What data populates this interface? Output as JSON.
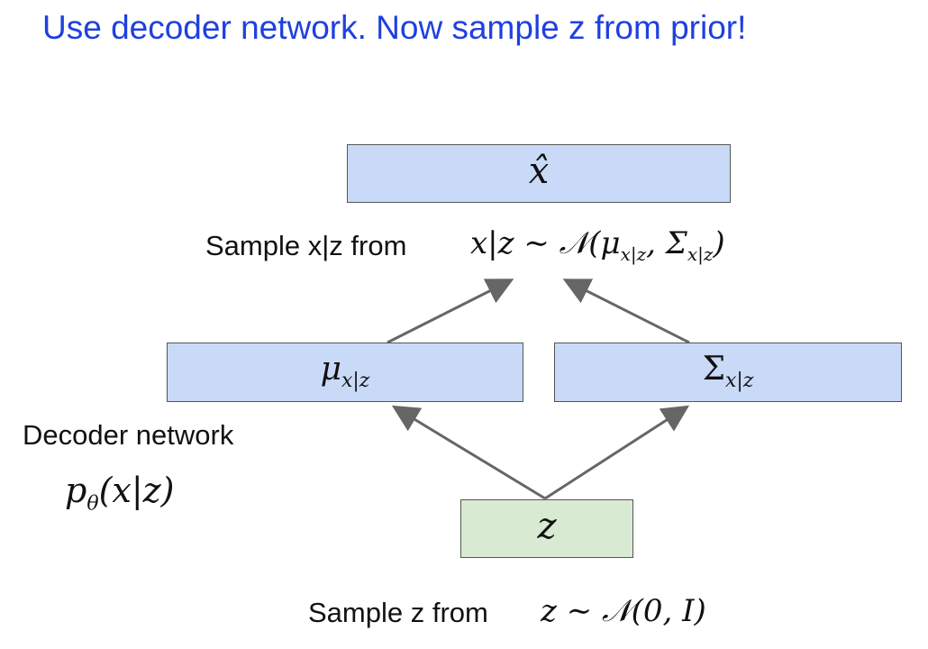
{
  "title": "Use decoder network.  Now sample z from prior!",
  "xhat_box": {
    "symbol": "x̂"
  },
  "sample_xz": {
    "text": "Sample x|z from",
    "formula": "x|z ∼ 𝒩(μ",
    "sub1": "x|z",
    "mid": ", Σ",
    "sub2": "x|z",
    "end": ")"
  },
  "mu_box": {
    "symbol": "μ",
    "sub": "x|z"
  },
  "sigma_box": {
    "symbol": "Σ",
    "sub": "x|z"
  },
  "decoder": {
    "label": "Decoder network",
    "formula_main": "p",
    "formula_sub": "θ",
    "formula_rest": "(x|z)"
  },
  "z_box": {
    "symbol": "z"
  },
  "sample_z": {
    "text": "Sample z from",
    "formula": "z ∼ 𝒩(0, I)"
  },
  "colors": {
    "title": "#1f3fe0",
    "box_blue": "#c9daf8",
    "box_green": "#d9ead3",
    "arrow": "#666666"
  }
}
